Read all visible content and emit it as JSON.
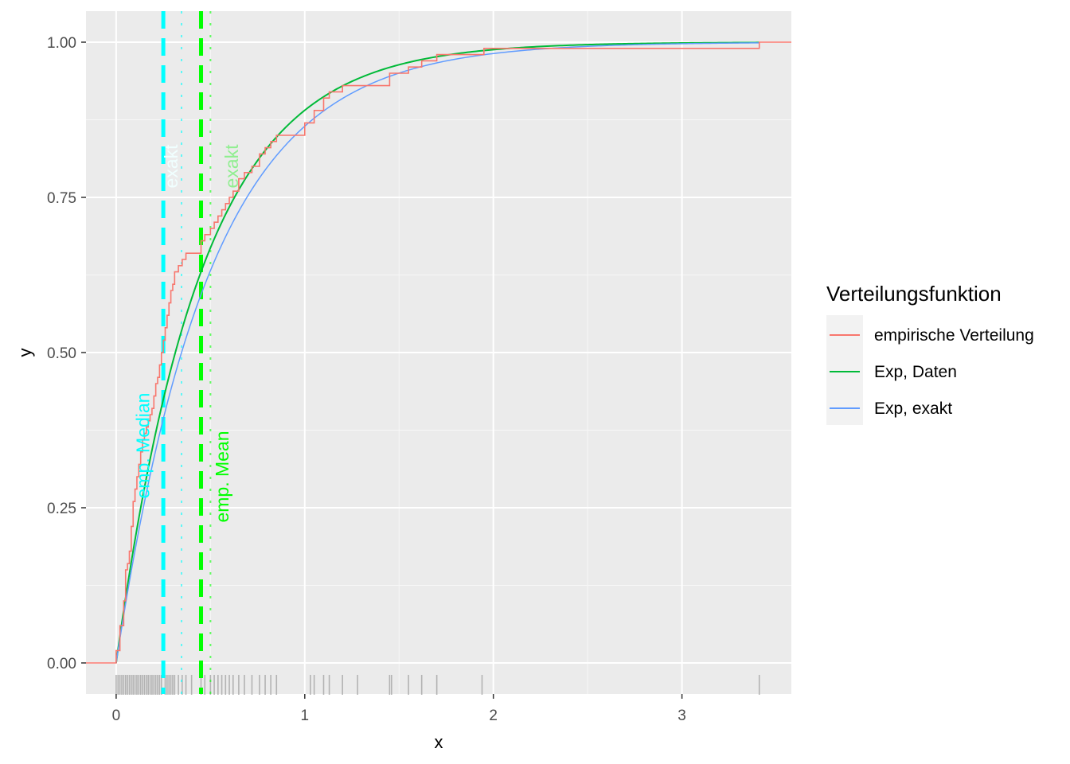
{
  "chart_data": {
    "type": "line",
    "title": "",
    "xlabel": "x",
    "ylabel": "y",
    "xlim": [
      -0.16,
      3.58
    ],
    "ylim": [
      -0.05,
      1.05
    ],
    "x_ticks": [
      0,
      1,
      2,
      3
    ],
    "x_tick_labels": [
      "0",
      "1",
      "2",
      "3"
    ],
    "y_ticks": [
      0,
      0.25,
      0.5,
      0.75,
      1
    ],
    "y_tick_labels": [
      "0.00",
      "0.25",
      "0.50",
      "0.75",
      "1.00"
    ],
    "grid": true,
    "legend": {
      "title": "Verteilungsfunktion",
      "placement": "right",
      "entries": [
        "empirische Verteilung",
        "Exp, Daten",
        "Exp, exakt"
      ]
    },
    "colors": {
      "empirical": "#F8766D",
      "exp_data": "#00BA38",
      "exp_exact": "#619CFF",
      "median": "#00FFFF",
      "mean": "#00FF00",
      "rug": "#B3B3B3",
      "panel": "#EBEBEB"
    },
    "series": [
      {
        "name": "empirische Verteilung",
        "kind": "step",
        "x": [
          -0.16,
          0.0,
          0.02,
          0.04,
          0.05,
          0.06,
          0.07,
          0.08,
          0.09,
          0.1,
          0.11,
          0.12,
          0.13,
          0.14,
          0.15,
          0.16,
          0.17,
          0.18,
          0.19,
          0.2,
          0.21,
          0.22,
          0.23,
          0.24,
          0.25,
          0.26,
          0.27,
          0.28,
          0.29,
          0.3,
          0.31,
          0.33,
          0.35,
          0.37,
          0.4,
          0.45,
          0.47,
          0.5,
          0.52,
          0.54,
          0.56,
          0.58,
          0.6,
          0.62,
          0.65,
          0.68,
          0.72,
          0.76,
          0.79,
          0.82,
          0.85,
          0.9,
          1.0,
          1.05,
          1.1,
          1.13,
          1.2,
          1.28,
          1.45,
          1.55,
          1.62,
          1.7,
          1.95,
          3.41,
          3.58
        ],
        "y": [
          0.0,
          0.02,
          0.06,
          0.1,
          0.15,
          0.16,
          0.18,
          0.22,
          0.26,
          0.28,
          0.3,
          0.32,
          0.34,
          0.36,
          0.37,
          0.38,
          0.39,
          0.4,
          0.41,
          0.43,
          0.45,
          0.46,
          0.48,
          0.5,
          0.52,
          0.54,
          0.56,
          0.58,
          0.6,
          0.61,
          0.63,
          0.64,
          0.65,
          0.66,
          0.66,
          0.68,
          0.69,
          0.7,
          0.71,
          0.72,
          0.73,
          0.74,
          0.75,
          0.76,
          0.78,
          0.79,
          0.8,
          0.82,
          0.83,
          0.84,
          0.85,
          0.85,
          0.87,
          0.89,
          0.91,
          0.92,
          0.93,
          0.93,
          0.95,
          0.96,
          0.97,
          0.98,
          0.99,
          1.0,
          1.0
        ]
      },
      {
        "name": "Exp, Daten",
        "kind": "curve",
        "rate": 2.21,
        "x_range": [
          0,
          3.41
        ]
      },
      {
        "name": "Exp, exakt",
        "kind": "curve",
        "rate": 2.0,
        "x_range": [
          0,
          3.41
        ]
      }
    ],
    "vlines": [
      {
        "x": 0.25,
        "style": "dashed",
        "color_key": "median"
      },
      {
        "x": 0.3466,
        "style": "dotted",
        "color_key": "median"
      },
      {
        "x": 0.45,
        "style": "dashed",
        "color_key": "mean"
      },
      {
        "x": 0.5,
        "style": "dotted",
        "color_key": "mean"
      }
    ],
    "annotations": [
      {
        "text": "exakt",
        "x": 0.3,
        "y": 0.8,
        "color": "#F0FFFF"
      },
      {
        "text": "exakt",
        "x": 0.62,
        "y": 0.8,
        "color": "#90EE90"
      },
      {
        "text": "emp. Median",
        "x": 0.15,
        "y": 0.35,
        "color": "#00FFFF"
      },
      {
        "text": "emp. Mean",
        "x": 0.57,
        "y": 0.3,
        "color": "#00FF00"
      }
    ],
    "rug_x": [
      0.0,
      0.01,
      0.02,
      0.03,
      0.04,
      0.05,
      0.06,
      0.07,
      0.08,
      0.09,
      0.1,
      0.11,
      0.12,
      0.13,
      0.14,
      0.15,
      0.16,
      0.17,
      0.18,
      0.19,
      0.2,
      0.21,
      0.22,
      0.23,
      0.24,
      0.26,
      0.27,
      0.28,
      0.29,
      0.3,
      0.31,
      0.33,
      0.35,
      0.37,
      0.4,
      0.45,
      0.47,
      0.5,
      0.52,
      0.54,
      0.56,
      0.58,
      0.6,
      0.62,
      0.65,
      0.68,
      0.72,
      0.76,
      0.79,
      0.82,
      0.85,
      1.03,
      1.05,
      1.1,
      1.13,
      1.2,
      1.28,
      1.45,
      1.46,
      1.55,
      1.62,
      1.7,
      1.94,
      3.41
    ]
  }
}
